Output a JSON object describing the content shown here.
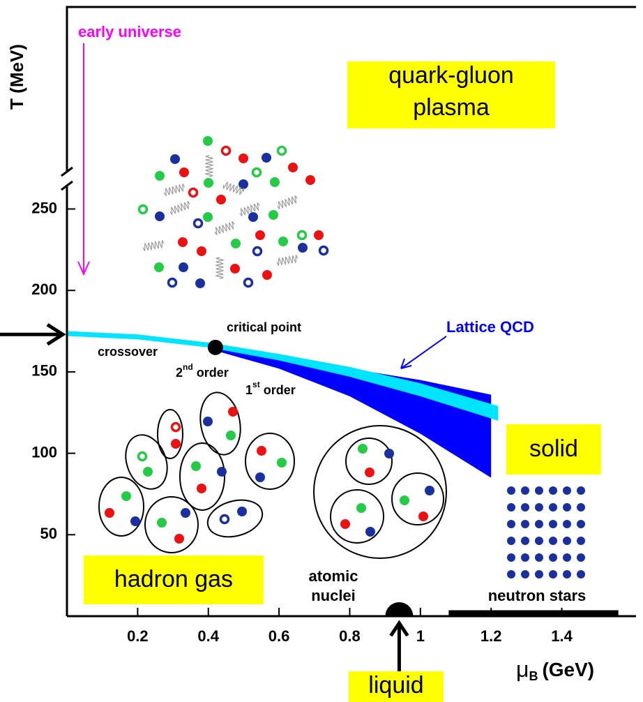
{
  "chart_data": {
    "type": "phase-diagram",
    "x_label": {
      "symbol": "μ",
      "subscript": "B",
      "unit": "(GeV)"
    },
    "y_label": "T (MeV)",
    "xlim": [
      0,
      1.61
    ],
    "ylim": [
      0,
      250
    ],
    "xticks": [
      0.2,
      0.4,
      0.6,
      0.8,
      1,
      1.2,
      1.4
    ],
    "yticks": [
      50,
      100,
      150,
      200,
      250
    ],
    "series": [
      {
        "color": "#0000ff",
        "x": [
          0.42,
          0.6,
          0.8,
          1.0,
          1.2
        ],
        "values": [
          165,
          160,
          152,
          145,
          136
        ],
        "lower": [
          163,
          152,
          135,
          112,
          85
        ]
      },
      {
        "name": "Lattice QCD",
        "color": "#00e5ff",
        "x": [
          0,
          0.2,
          0.4,
          0.6,
          0.8,
          1.0,
          1.22
        ],
        "values": [
          175,
          173,
          168,
          161,
          153,
          143,
          129
        ],
        "lower": [
          172,
          170,
          165,
          157,
          147,
          135,
          120
        ]
      }
    ],
    "critical_point": {
      "label": "critical point",
      "x": 0.42,
      "y": 165
    },
    "crossover_T": 173,
    "early_universe": {
      "label": "early universe",
      "y": 210
    },
    "crossover": "crossover",
    "second_order": {
      "base": "2",
      "sup": "nd",
      "text": "order"
    },
    "first_order": {
      "base": "1",
      "sup": "st",
      "text": "order"
    },
    "quark_gluon_plasma": [
      "quark-gluon",
      "plasma"
    ],
    "hadron_gas": "hadron gas",
    "solid": "solid",
    "atomic_nuclei": [
      "atomic",
      "nuclei"
    ],
    "neutron_stars": {
      "label": "neutron stars",
      "x": [
        1.08,
        1.56
      ]
    },
    "liquid": {
      "label": "liquid",
      "x": 0.94
    }
  }
}
